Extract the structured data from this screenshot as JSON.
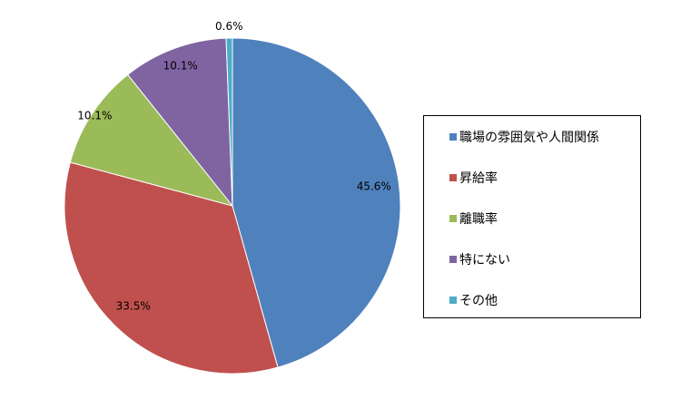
{
  "chart_data": {
    "type": "pie",
    "start": "top",
    "direction": "clockwise",
    "legend_position": "right",
    "slices": [
      {
        "name": "職場の雰囲気や人間関係",
        "value": 45.6,
        "label": "45.6%",
        "color": "#4F81BD"
      },
      {
        "name": "昇給率",
        "value": 33.5,
        "label": "33.5%",
        "color": "#C0504D"
      },
      {
        "name": "離職率",
        "value": 10.1,
        "label": "10.1%",
        "color": "#9BBB59"
      },
      {
        "name": "特にない",
        "value": 10.1,
        "label": "10.1%",
        "color": "#8064A2"
      },
      {
        "name": "その他",
        "value": 0.6,
        "label": "0.6%",
        "color": "#4BACC6"
      }
    ]
  }
}
